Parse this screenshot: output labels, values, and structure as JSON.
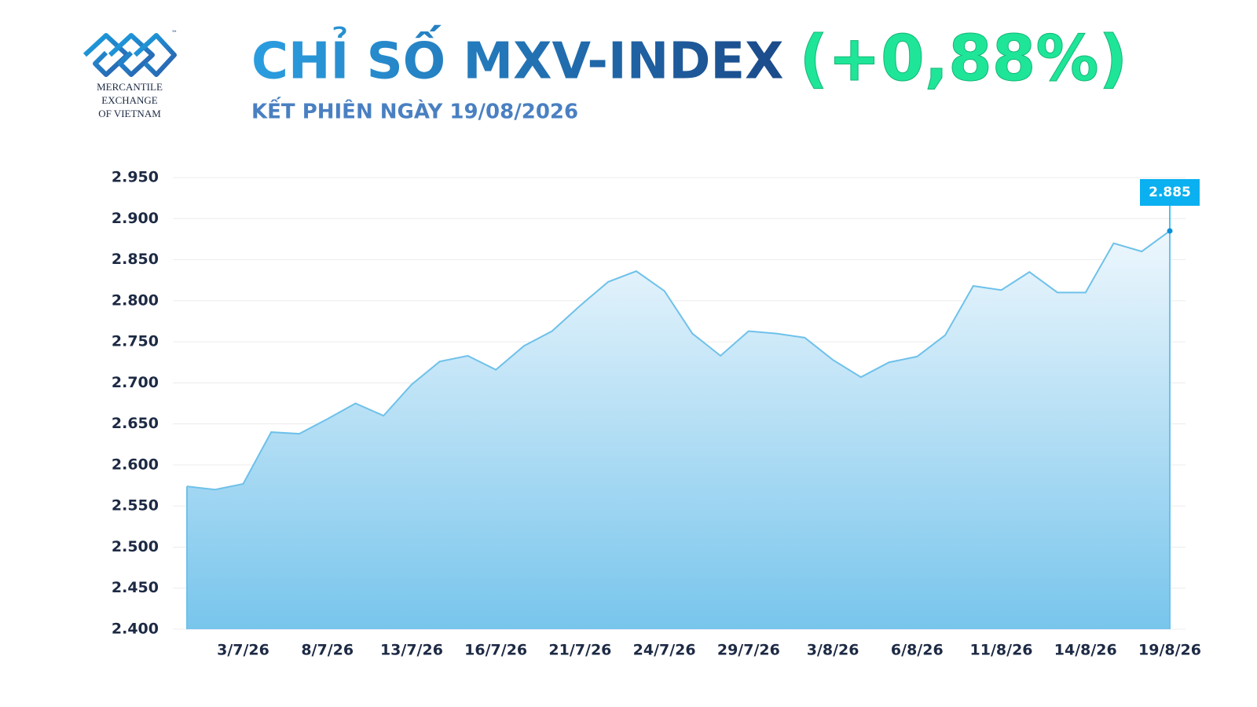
{
  "logo": {
    "lines": [
      "MERCANTILE",
      "EXCHANGE",
      "OF VIETNAM"
    ],
    "mark": "™"
  },
  "chart_data": {
    "type": "area",
    "title": "CHỈ SỐ MXV-INDEX",
    "title_change": "(+0,88%)",
    "subtitle": "KẾT PHIÊN NGÀY 19/08/2026",
    "categories": [
      null,
      null,
      "3/7/26",
      null,
      null,
      "8/7/26",
      null,
      null,
      "13/7/26",
      null,
      null,
      "16/7/26",
      null,
      null,
      "21/7/26",
      null,
      null,
      "24/7/26",
      null,
      null,
      "29/7/26",
      null,
      null,
      "3/8/26",
      null,
      null,
      "6/8/26",
      null,
      null,
      "11/8/26",
      null,
      null,
      "14/8/26",
      null,
      null,
      "19/8/26"
    ],
    "series": [
      {
        "name": "MXV-Index",
        "color": "#6ec1ea",
        "values": [
          2574,
          2570,
          2577,
          2640,
          2638,
          2656,
          2675,
          2660,
          2698,
          2726,
          2733,
          2716,
          2745,
          2763,
          2794,
          2823,
          2836,
          2812,
          2760,
          2733,
          2763,
          2760,
          2755,
          2728,
          2707,
          2725,
          2732,
          2758,
          2818,
          2813,
          2835,
          2810,
          2810,
          2870,
          2860,
          2885
        ],
        "value_labels": [
          null,
          null,
          null,
          null,
          null,
          null,
          null,
          null,
          null,
          null,
          null,
          null,
          null,
          null,
          null,
          null,
          null,
          null,
          null,
          null,
          null,
          null,
          null,
          null,
          null,
          null,
          null,
          null,
          null,
          null,
          null,
          null,
          null,
          null,
          null,
          "2.885"
        ]
      }
    ],
    "ylim": [
      2400,
      2950
    ],
    "yticks": [
      {
        "value": 2400,
        "label": "2.400"
      },
      {
        "value": 2450,
        "label": "2.450"
      },
      {
        "value": 2500,
        "label": "2.500"
      },
      {
        "value": 2550,
        "label": "2.550"
      },
      {
        "value": 2600,
        "label": "2.600"
      },
      {
        "value": 2650,
        "label": "2.650"
      },
      {
        "value": 2700,
        "label": "2.700"
      },
      {
        "value": 2750,
        "label": "2.750"
      },
      {
        "value": 2800,
        "label": "2.800"
      },
      {
        "value": 2850,
        "label": "2.850"
      },
      {
        "value": 2900,
        "label": "2.900"
      },
      {
        "value": 2950,
        "label": "2.950"
      }
    ],
    "grid": true
  }
}
